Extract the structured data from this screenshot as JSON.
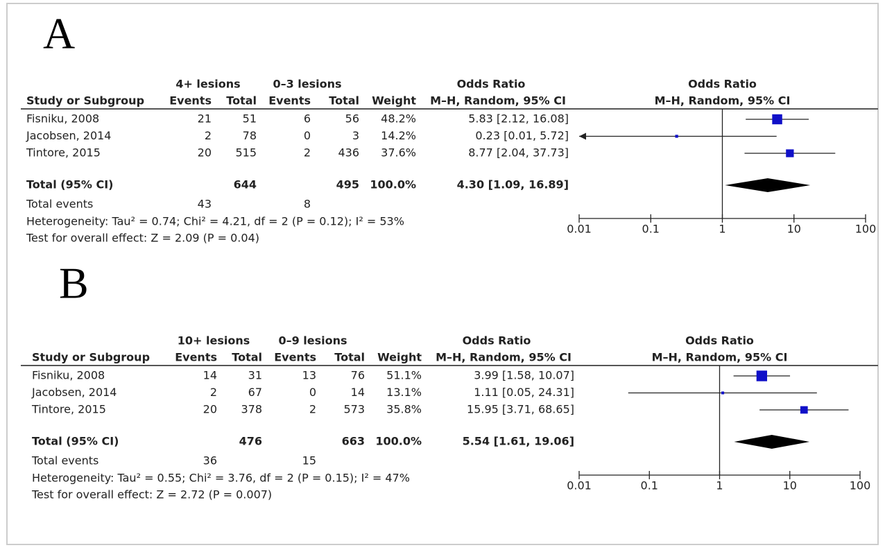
{
  "chart_data": [
    {
      "type": "forest",
      "label": "A",
      "group_1": "4+ lesions",
      "group_2": "0–3 lesions",
      "or_header": "Odds Ratio",
      "or_method": "M–H, Random, 95% CI",
      "plot_header": "Odds Ratio",
      "plot_method": "M–H, Random, 95% CI",
      "column_labels": [
        "Study or Subgroup",
        "Events",
        "Total",
        "Events",
        "Total",
        "Weight"
      ],
      "studies": [
        "Fisniku, 2008",
        "Jacobsen, 2014",
        "Tintore, 2015"
      ],
      "events_1": [
        21,
        2,
        20
      ],
      "total_1": [
        51,
        78,
        515
      ],
      "events_2": [
        6,
        0,
        2
      ],
      "total_2": [
        56,
        3,
        436
      ],
      "weights": [
        48.2,
        14.2,
        37.6
      ],
      "weight_labels": [
        "48.2%",
        "14.2%",
        "37.6%"
      ],
      "values": [
        5.83,
        0.23,
        8.77
      ],
      "ci_low": [
        2.12,
        0.01,
        2.04
      ],
      "ci_high": [
        16.08,
        5.72,
        37.73
      ],
      "value_labels": [
        "5.83 [2.12, 16.08]",
        "0.23 [0.01, 5.72]",
        "8.77 [2.04, 37.73]"
      ],
      "total_label": "Total (95% CI)",
      "sum_total_1": 644,
      "sum_total_2": 495,
      "sum_weight": 100.0,
      "sum_weight_label": "100.0%",
      "pooled": 4.3,
      "pooled_low": 1.09,
      "pooled_high": 16.89,
      "pooled_label": "4.30 [1.09, 16.89]",
      "events_label": "Total events",
      "sum_events_1": 43,
      "sum_events_2": 8,
      "heterogeneity": "Heterogeneity: Tau² = 0.74; Chi² = 4.21, df = 2 (P = 0.12); I² = 53%",
      "overall_effect": "Test for overall effect: Z = 2.09 (P = 0.04)",
      "log_scale": true,
      "xlim": [
        0.01,
        100
      ],
      "xticks": [
        0.01,
        0.1,
        1,
        10,
        100
      ],
      "color": "#1010c8"
    },
    {
      "type": "forest",
      "label": "B",
      "group_1": "10+ lesions",
      "group_2": "0–9 lesions",
      "or_header": "Odds Ratio",
      "or_method": "M–H, Random, 95% CI",
      "plot_header": "Odds Ratio",
      "plot_method": "M–H, Random, 95% CI",
      "column_labels": [
        "Study or Subgroup",
        "Events",
        "Total",
        "Events",
        "Total",
        "Weight"
      ],
      "studies": [
        "Fisniku, 2008",
        "Jacobsen, 2014",
        "Tintore, 2015"
      ],
      "events_1": [
        14,
        2,
        20
      ],
      "total_1": [
        31,
        67,
        378
      ],
      "events_2": [
        13,
        0,
        2
      ],
      "total_2": [
        76,
        14,
        573
      ],
      "weights": [
        51.1,
        13.1,
        35.8
      ],
      "weight_labels": [
        "51.1%",
        "13.1%",
        "35.8%"
      ],
      "values": [
        3.99,
        1.11,
        15.95
      ],
      "ci_low": [
        1.58,
        0.05,
        3.71
      ],
      "ci_high": [
        10.07,
        24.31,
        68.65
      ],
      "value_labels": [
        "3.99 [1.58, 10.07]",
        "1.11 [0.05, 24.31]",
        "15.95 [3.71, 68.65]"
      ],
      "total_label": "Total (95% CI)",
      "sum_total_1": 476,
      "sum_total_2": 663,
      "sum_weight": 100.0,
      "sum_weight_label": "100.0%",
      "pooled": 5.54,
      "pooled_low": 1.61,
      "pooled_high": 19.06,
      "pooled_label": "5.54 [1.61, 19.06]",
      "events_label": "Total events",
      "sum_events_1": 36,
      "sum_events_2": 15,
      "heterogeneity": "Heterogeneity: Tau² = 0.55; Chi² = 3.76, df = 2 (P = 0.15); I² = 47%",
      "overall_effect": "Test for overall effect: Z = 2.72 (P = 0.007)",
      "log_scale": true,
      "xlim": [
        0.01,
        100
      ],
      "xticks": [
        0.01,
        0.1,
        1,
        10,
        100
      ],
      "color": "#1010c8"
    }
  ]
}
